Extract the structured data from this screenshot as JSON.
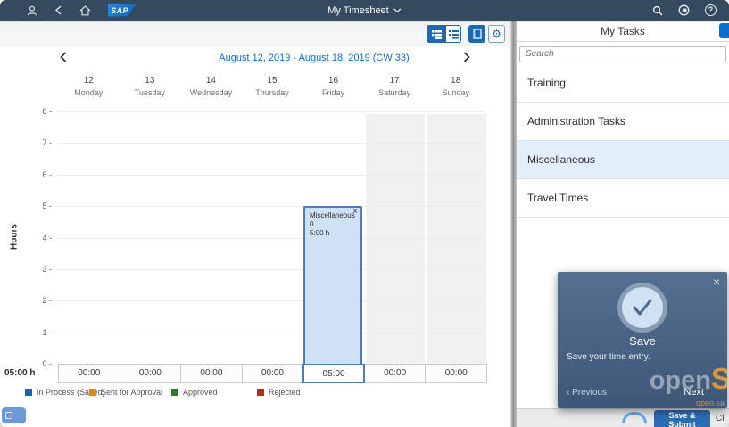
{
  "shellbar": {
    "logo_text": "SAP",
    "title": "My Timesheet"
  },
  "week_nav": {
    "label": "August 12, 2019 - August 18, 2019 (CW 33)"
  },
  "timesheet": {
    "ylabel": "Hours",
    "y_ticks": [
      "8",
      "7",
      "6",
      "5",
      "4",
      "3",
      "2",
      "1",
      "0"
    ],
    "week_total": "05:00 h",
    "days": [
      {
        "num": "12",
        "name": "Monday",
        "total": "00:00",
        "weekend": false
      },
      {
        "num": "13",
        "name": "Tuesday",
        "total": "00:00",
        "weekend": false
      },
      {
        "num": "14",
        "name": "Wednesday",
        "total": "00:00",
        "weekend": false
      },
      {
        "num": "15",
        "name": "Thursday",
        "total": "00:00",
        "weekend": false
      },
      {
        "num": "16",
        "name": "Friday",
        "total": "05:00",
        "weekend": false
      },
      {
        "num": "17",
        "name": "Saturday",
        "total": "00:00",
        "weekend": true
      },
      {
        "num": "18",
        "name": "Sunday",
        "total": "00:00",
        "weekend": true
      }
    ],
    "entry": {
      "title": "Miscellaneous 0",
      "duration": "5:00 h",
      "day": "16",
      "start_hour": 0,
      "end_hour": 5,
      "status": "In Process (Saved)",
      "close_glyph": "×"
    }
  },
  "legend": [
    {
      "label": "In Process (Saved)",
      "color": "#1a63a8"
    },
    {
      "label": "Sent for Approval",
      "color": "#dd8c0f"
    },
    {
      "label": "Approved",
      "color": "#2d7a2d"
    },
    {
      "label": "Rejected",
      "color": "#bb2a18"
    }
  ],
  "tasks": {
    "title": "My Tasks",
    "search_placeholder": "Search",
    "items": [
      {
        "label": "Training",
        "selected": false
      },
      {
        "label": "Administration Tasks",
        "selected": false
      },
      {
        "label": "Miscellaneous",
        "selected": true
      },
      {
        "label": "Travel Times",
        "selected": false
      }
    ]
  },
  "popup": {
    "title": "Save",
    "description": "Save your time entry.",
    "previous_label": "Previous",
    "previous_chevron": "‹",
    "next_label": "Next",
    "close_glyph": "×",
    "watermark": {
      "gray": "open",
      "orange": "S",
      "sub": "open.sa"
    }
  },
  "footer": {
    "save_submit_label": "Save & Submit",
    "partial_label": "Cl"
  },
  "colors": {
    "shellbar": "#354a5f",
    "accent": "#0a6ed1",
    "entry_fill": "#c7dcf2",
    "entry_border": "#4f7cb8",
    "selected_row": "#e2eef9",
    "weekend": "#f0f0f1"
  }
}
